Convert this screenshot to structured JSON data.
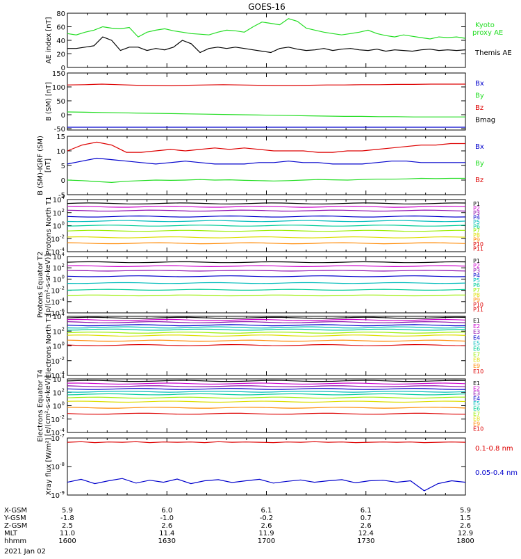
{
  "title": "GOES-16",
  "colors": {
    "black": "#000000",
    "red": "#dd0000",
    "green": "#22dd22",
    "blue": "#0000cc",
    "kyoto": "#22ee22",
    "magenta": "#cc00cc",
    "cyan": "#00bbbb",
    "yellow": "#dddd00",
    "orange": "#ff8800",
    "purple": "#8800aa",
    "teal": "#00cc99",
    "lime": "#99ee00"
  },
  "chart_data": [
    {
      "type": "line",
      "id": "ae",
      "ylabel": "AE index [nT]",
      "ylim": [
        0,
        80
      ],
      "yticks": [
        "0",
        "20",
        "40",
        "60",
        "80"
      ],
      "series": [
        {
          "name": "Kyoto proxy AE",
          "color": "green",
          "values": [
            50,
            48,
            52,
            55,
            60,
            58,
            57,
            59,
            45,
            52,
            55,
            57,
            54,
            52,
            50,
            49,
            48,
            52,
            55,
            54,
            52,
            60,
            67,
            65,
            63,
            72,
            68,
            58,
            55,
            52,
            50,
            48,
            50,
            52,
            55,
            50,
            47,
            45,
            48,
            46,
            44,
            42,
            45,
            44,
            45,
            43
          ]
        },
        {
          "name": "Themis AE",
          "color": "black",
          "values": [
            28,
            28,
            30,
            32,
            45,
            40,
            25,
            30,
            30,
            25,
            28,
            26,
            30,
            40,
            35,
            22,
            28,
            30,
            28,
            30,
            28,
            26,
            24,
            22,
            28,
            30,
            27,
            25,
            26,
            28,
            25,
            27,
            28,
            26,
            25,
            27,
            24,
            26,
            25,
            24,
            26,
            27,
            25,
            26,
            25,
            26
          ]
        }
      ]
    },
    {
      "type": "line",
      "id": "bsm",
      "ylabel": "B (SM) [nT]",
      "ylim": [
        -55,
        150
      ],
      "yticks": [
        "-50",
        "0",
        "50",
        "100",
        "150"
      ],
      "series": [
        {
          "name": "Bx",
          "color": "blue",
          "values": [
            -45,
            -45,
            -45,
            -45,
            -45,
            -45,
            -45,
            -45,
            -45,
            -45,
            -45,
            -45,
            -45,
            -45,
            -45,
            -45,
            -45,
            -45,
            -45,
            -45,
            -45,
            -45,
            -45,
            -45
          ]
        },
        {
          "name": "By",
          "color": "green",
          "values": [
            10,
            9,
            8,
            7,
            6,
            5,
            4,
            3,
            2,
            1,
            0,
            -1,
            -2,
            -3,
            -4,
            -5,
            -6,
            -6,
            -7,
            -7,
            -8,
            -8,
            -8,
            -8
          ]
        },
        {
          "name": "Bz",
          "color": "red",
          "values": [
            107,
            108,
            110,
            108,
            106,
            105,
            104,
            106,
            107,
            108,
            107,
            106,
            105,
            105,
            106,
            107,
            107,
            108,
            108,
            109,
            109,
            110,
            110,
            110
          ]
        },
        {
          "name": "Bmag",
          "color": "black",
          "values": []
        }
      ]
    },
    {
      "type": "line",
      "id": "bigrf",
      "ylabel": "B (SM)-IGRF (SM) [nT]",
      "ylim": [
        -5,
        15
      ],
      "yticks": [
        "-5",
        "0",
        "5",
        "10",
        "15"
      ],
      "series": [
        {
          "name": "Bx",
          "color": "blue",
          "values": [
            5.5,
            6.5,
            7.5,
            7.0,
            6.5,
            6.0,
            5.5,
            6.0,
            6.5,
            6.0,
            5.5,
            5.5,
            5.5,
            6.0,
            6.0,
            6.5,
            6.0,
            6.0,
            5.5,
            5.5,
            5.5,
            6.0,
            6.5,
            6.5,
            6.0,
            6.0,
            6.0,
            6.0
          ]
        },
        {
          "name": "By",
          "color": "green",
          "values": [
            0.0,
            -0.2,
            -0.5,
            -0.8,
            -0.4,
            -0.2,
            0.0,
            -0.1,
            0.0,
            0.2,
            0.0,
            0.1,
            -0.1,
            -0.2,
            -0.3,
            -0.2,
            0.0,
            0.2,
            0.1,
            0.0,
            0.2,
            0.3,
            0.3,
            0.4,
            0.6,
            0.5,
            0.6,
            0.6
          ]
        },
        {
          "name": "Bz",
          "color": "red",
          "values": [
            10.0,
            12.0,
            13.0,
            12.0,
            9.5,
            9.5,
            10.0,
            10.5,
            10.0,
            10.5,
            11.0,
            10.5,
            11.0,
            10.5,
            10.0,
            10.0,
            10.0,
            9.5,
            9.5,
            10.0,
            10.0,
            10.5,
            11.0,
            11.5,
            12.0,
            12.0,
            12.5,
            12.5
          ]
        }
      ]
    },
    {
      "type": "line",
      "id": "pnorth",
      "ylabel": "Protons North T1",
      "yscale": "log",
      "ylim": [
        -4,
        4
      ],
      "ytick_labels": [
        {
          "base": "10",
          "exp": "-4"
        },
        {
          "base": "10",
          "exp": "-2"
        },
        {
          "base": "10",
          "exp": "0"
        },
        {
          "base": "10",
          "exp": "2"
        },
        {
          "base": "10",
          "exp": "4"
        }
      ],
      "channels": [
        "P1",
        "P2",
        "P3",
        "P4",
        "P5",
        "P6",
        "P7",
        "P8",
        "P9",
        "P10",
        "P11"
      ],
      "channel_colors": [
        "black",
        "magenta",
        "purple",
        "blue",
        "cyan",
        "teal",
        "lime",
        "yellow",
        "orange",
        "red",
        "red"
      ],
      "log_levels": [
        3.4,
        2.9,
        2.3,
        1.4,
        0.7,
        0.0,
        -0.8,
        -1.8,
        -2.7,
        null,
        null
      ]
    },
    {
      "type": "line",
      "id": "peq",
      "ylabel": "Protons Equator T2 [p/(cm²-s-sr-keV)]",
      "yscale": "log",
      "ylim": [
        -6,
        4
      ],
      "ytick_labels": [
        {
          "base": "10",
          "exp": "-6"
        },
        {
          "base": "10",
          "exp": "-4"
        },
        {
          "base": "10",
          "exp": "-2"
        },
        {
          "base": "10",
          "exp": "0"
        },
        {
          "base": "10",
          "exp": "2"
        },
        {
          "base": "10",
          "exp": "4"
        }
      ],
      "channels": [
        "P1",
        "P2",
        "P3",
        "P4",
        "P5",
        "P6",
        "P7",
        "P8",
        "P9",
        "P10",
        "P11"
      ],
      "channel_colors": [
        "black",
        "magenta",
        "purple",
        "blue",
        "cyan",
        "teal",
        "lime",
        "yellow",
        "orange",
        "red",
        "red"
      ],
      "log_levels": [
        3.0,
        2.3,
        1.5,
        0.5,
        -0.7,
        -1.9,
        -2.9,
        null,
        null,
        null,
        null
      ]
    },
    {
      "type": "line",
      "id": "enorth",
      "ylabel": "Electrons North T3",
      "yscale": "log",
      "ylim": [
        -4,
        4
      ],
      "ytick_labels": [
        {
          "base": "10",
          "exp": "-4"
        },
        {
          "base": "10",
          "exp": "-2"
        },
        {
          "base": "10",
          "exp": "0"
        },
        {
          "base": "10",
          "exp": "2"
        },
        {
          "base": "10",
          "exp": "4"
        }
      ],
      "channels": [
        "E1",
        "E2",
        "E3",
        "E4",
        "E5",
        "E6",
        "E7",
        "E8",
        "E9",
        "E10"
      ],
      "channel_colors": [
        "black",
        "magenta",
        "purple",
        "blue",
        "cyan",
        "teal",
        "lime",
        "yellow",
        "orange",
        "red"
      ],
      "log_levels": [
        3.8,
        3.5,
        3.2,
        2.8,
        2.5,
        2.2,
        1.8,
        1.4,
        0.7,
        0.1
      ]
    },
    {
      "type": "line",
      "id": "eeq",
      "ylabel": "Electrons Equator T4 [e/(cm²-s-sr-keV)]",
      "yscale": "log",
      "ylim": [
        -4,
        4
      ],
      "ytick_labels": [
        {
          "base": "10",
          "exp": "-4"
        },
        {
          "base": "10",
          "exp": "-2"
        },
        {
          "base": "10",
          "exp": "0"
        },
        {
          "base": "10",
          "exp": "2"
        },
        {
          "base": "10",
          "exp": "4"
        }
      ],
      "channels": [
        "E1",
        "E2",
        "E3",
        "E4",
        "E5",
        "E6",
        "E7",
        "E8",
        "E9",
        "E10"
      ],
      "channel_colors": [
        "black",
        "magenta",
        "purple",
        "blue",
        "cyan",
        "teal",
        "lime",
        "yellow",
        "orange",
        "red"
      ],
      "log_levels": [
        3.7,
        3.3,
        2.9,
        2.5,
        2.1,
        1.7,
        1.2,
        0.6,
        -0.3,
        -1.2
      ]
    },
    {
      "type": "line",
      "id": "xray",
      "ylabel": "Xray flux [W/m²]",
      "yscale": "log",
      "ylim": [
        -9,
        -7
      ],
      "ytick_labels": [
        {
          "base": "10",
          "exp": "-9"
        },
        {
          "base": "10",
          "exp": "-8"
        },
        {
          "base": "10",
          "exp": "-7"
        }
      ],
      "series": [
        {
          "name": "0.1-0.8 nm",
          "color": "red",
          "values": [
            -7.15,
            -7.13,
            -7.16,
            -7.14,
            -7.15,
            -7.13,
            -7.16,
            -7.14,
            -7.15,
            -7.14,
            -7.16,
            -7.13,
            -7.15,
            -7.14,
            -7.15,
            -7.16,
            -7.14,
            -7.15,
            -7.13,
            -7.15,
            -7.14,
            -7.16,
            -7.15,
            -7.14,
            -7.15,
            -7.14,
            -7.16,
            -7.15,
            -7.14,
            -7.15
          ]
        },
        {
          "name": "0.05-0.4 nm",
          "color": "blue",
          "values": [
            -8.55,
            -8.45,
            -8.6,
            -8.5,
            -8.42,
            -8.58,
            -8.48,
            -8.55,
            -8.44,
            -8.6,
            -8.5,
            -8.46,
            -8.56,
            -8.5,
            -8.45,
            -8.58,
            -8.52,
            -8.47,
            -8.55,
            -8.5,
            -8.46,
            -8.57,
            -8.5,
            -8.48,
            -8.55,
            -8.5,
            -8.85,
            -8.6,
            -8.5,
            -8.55
          ]
        }
      ]
    }
  ],
  "x_axis": {
    "row_labels": [
      "X-GSM",
      "Y-GSM",
      "Z-GSM",
      "MLT",
      "hhmm",
      "2021 Jan 02"
    ],
    "columns": [
      {
        "values": [
          "5.9",
          "-1.8",
          "2.5",
          "11.0",
          "1600"
        ]
      },
      {
        "values": [
          "6.0",
          "-1.0",
          "2.6",
          "11.4",
          "1630"
        ]
      },
      {
        "values": [
          "6.1",
          "-0.2",
          "2.6",
          "11.9",
          "1700"
        ]
      },
      {
        "values": [
          "6.1",
          "0.7",
          "2.6",
          "12.4",
          "1730"
        ]
      },
      {
        "values": [
          "5.9",
          "1.5",
          "2.6",
          "12.9",
          "1800"
        ]
      }
    ]
  }
}
